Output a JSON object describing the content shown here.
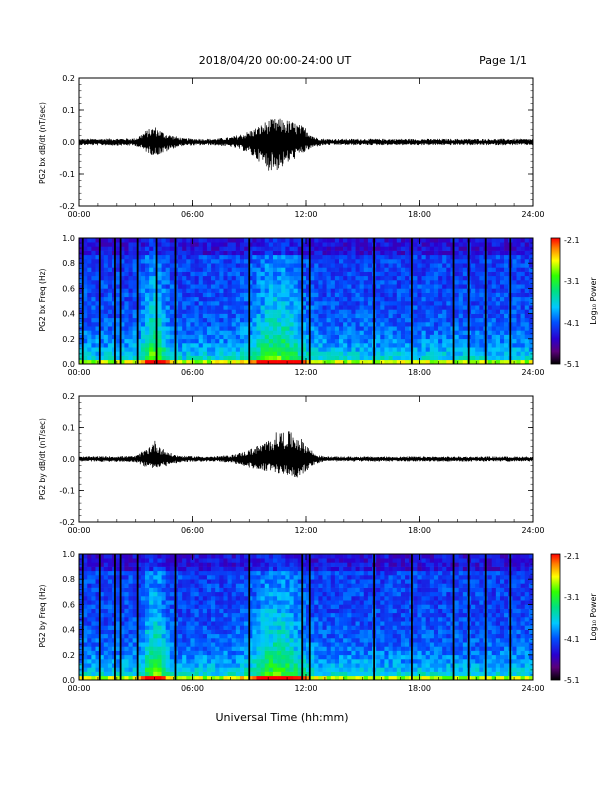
{
  "header": {
    "title": "2018/04/20  00:00-24:00 UT",
    "page": "Page 1/1"
  },
  "xlabel": "Universal Time (hh:mm)",
  "chart_data": [
    {
      "type": "line",
      "ylabel": "PG2 bx dB/dt (nT/sec)",
      "xlim": [
        0,
        24
      ],
      "xticks": [
        "00:00",
        "06:00",
        "12:00",
        "18:00",
        "24:00"
      ],
      "ylim": [
        -0.2,
        0.2
      ],
      "yticks": [
        "-0.2",
        "-0.1",
        "0.0",
        "0.1",
        "0.2"
      ],
      "envelope": {
        "x": [
          0,
          3.0,
          3.5,
          4.0,
          4.5,
          5.0,
          5.5,
          7.0,
          8.0,
          8.8,
          9.5,
          10.0,
          10.5,
          11.0,
          11.5,
          12.0,
          12.5,
          13.0,
          18.0,
          24.0
        ],
        "ymax": [
          0.01,
          0.012,
          0.035,
          0.05,
          0.03,
          0.02,
          0.012,
          0.01,
          0.015,
          0.03,
          0.05,
          0.07,
          0.075,
          0.07,
          0.06,
          0.045,
          0.015,
          0.01,
          0.01,
          0.01
        ],
        "ymin": [
          -0.01,
          -0.012,
          -0.03,
          -0.045,
          -0.035,
          -0.02,
          -0.012,
          -0.01,
          -0.015,
          -0.03,
          -0.06,
          -0.09,
          -0.09,
          -0.07,
          -0.05,
          -0.03,
          -0.015,
          -0.01,
          -0.01,
          -0.01
        ]
      }
    },
    {
      "type": "heatmap",
      "ylabel": "PG2 bx Freq (Hz)",
      "xlim": [
        0,
        24
      ],
      "xticks": [
        "00:00",
        "06:00",
        "12:00",
        "18:00",
        "24:00"
      ],
      "ylim": [
        0,
        1.0
      ],
      "yticks": [
        "0.0",
        "0.2",
        "0.4",
        "0.6",
        "0.8",
        "1.0"
      ],
      "colorbar": {
        "label": "Log₁₀ Power",
        "range": [
          -5.1,
          -2.1
        ],
        "ticks": [
          "-2.1",
          "-3.1",
          "-4.1",
          "-5.1"
        ]
      },
      "gap_lines_ut": [
        0.2,
        1.1,
        1.9,
        2.2,
        3.1,
        4.1,
        5.1,
        9.0,
        11.8,
        12.2,
        15.6,
        17.6,
        19.8,
        20.6,
        21.5,
        22.8
      ]
    },
    {
      "type": "line",
      "ylabel": "PG2 by dB/dt (nT/sec)",
      "xlim": [
        0,
        24
      ],
      "xticks": [
        "00:00",
        "06:00",
        "12:00",
        "18:00",
        "24:00"
      ],
      "ylim": [
        -0.2,
        0.2
      ],
      "yticks": [
        "-0.2",
        "-0.1",
        "0.0",
        "0.1",
        "0.2"
      ],
      "envelope": {
        "x": [
          0,
          3.0,
          3.5,
          4.0,
          4.5,
          5.0,
          5.5,
          7.0,
          8.0,
          8.8,
          9.5,
          10.0,
          10.5,
          11.0,
          11.5,
          12.0,
          12.5,
          13.0,
          18.0,
          24.0
        ],
        "ymax": [
          0.008,
          0.01,
          0.03,
          0.06,
          0.03,
          0.015,
          0.01,
          0.008,
          0.012,
          0.025,
          0.045,
          0.06,
          0.09,
          0.09,
          0.08,
          0.05,
          0.015,
          0.008,
          0.008,
          0.008
        ],
        "ymin": [
          -0.008,
          -0.01,
          -0.025,
          -0.03,
          -0.025,
          -0.015,
          -0.01,
          -0.008,
          -0.012,
          -0.025,
          -0.035,
          -0.04,
          -0.045,
          -0.055,
          -0.06,
          -0.04,
          -0.015,
          -0.008,
          -0.008,
          -0.008
        ]
      }
    },
    {
      "type": "heatmap",
      "ylabel": "PG2 by Freq (Hz)",
      "xlim": [
        0,
        24
      ],
      "xticks": [
        "00:00",
        "06:00",
        "12:00",
        "18:00",
        "24:00"
      ],
      "ylim": [
        0,
        1.0
      ],
      "yticks": [
        "0.0",
        "0.2",
        "0.4",
        "0.6",
        "0.8",
        "1.0"
      ],
      "colorbar": {
        "label": "Log₁₀ Power",
        "range": [
          -5.1,
          -2.1
        ],
        "ticks": [
          "-2.1",
          "-3.1",
          "-4.1",
          "-5.1"
        ]
      },
      "gap_lines_ut": [
        0.2,
        1.1,
        1.9,
        2.2,
        3.1,
        5.1,
        9.0,
        11.8,
        12.2,
        15.6,
        17.6,
        19.8,
        20.6,
        21.5,
        22.8
      ]
    }
  ]
}
